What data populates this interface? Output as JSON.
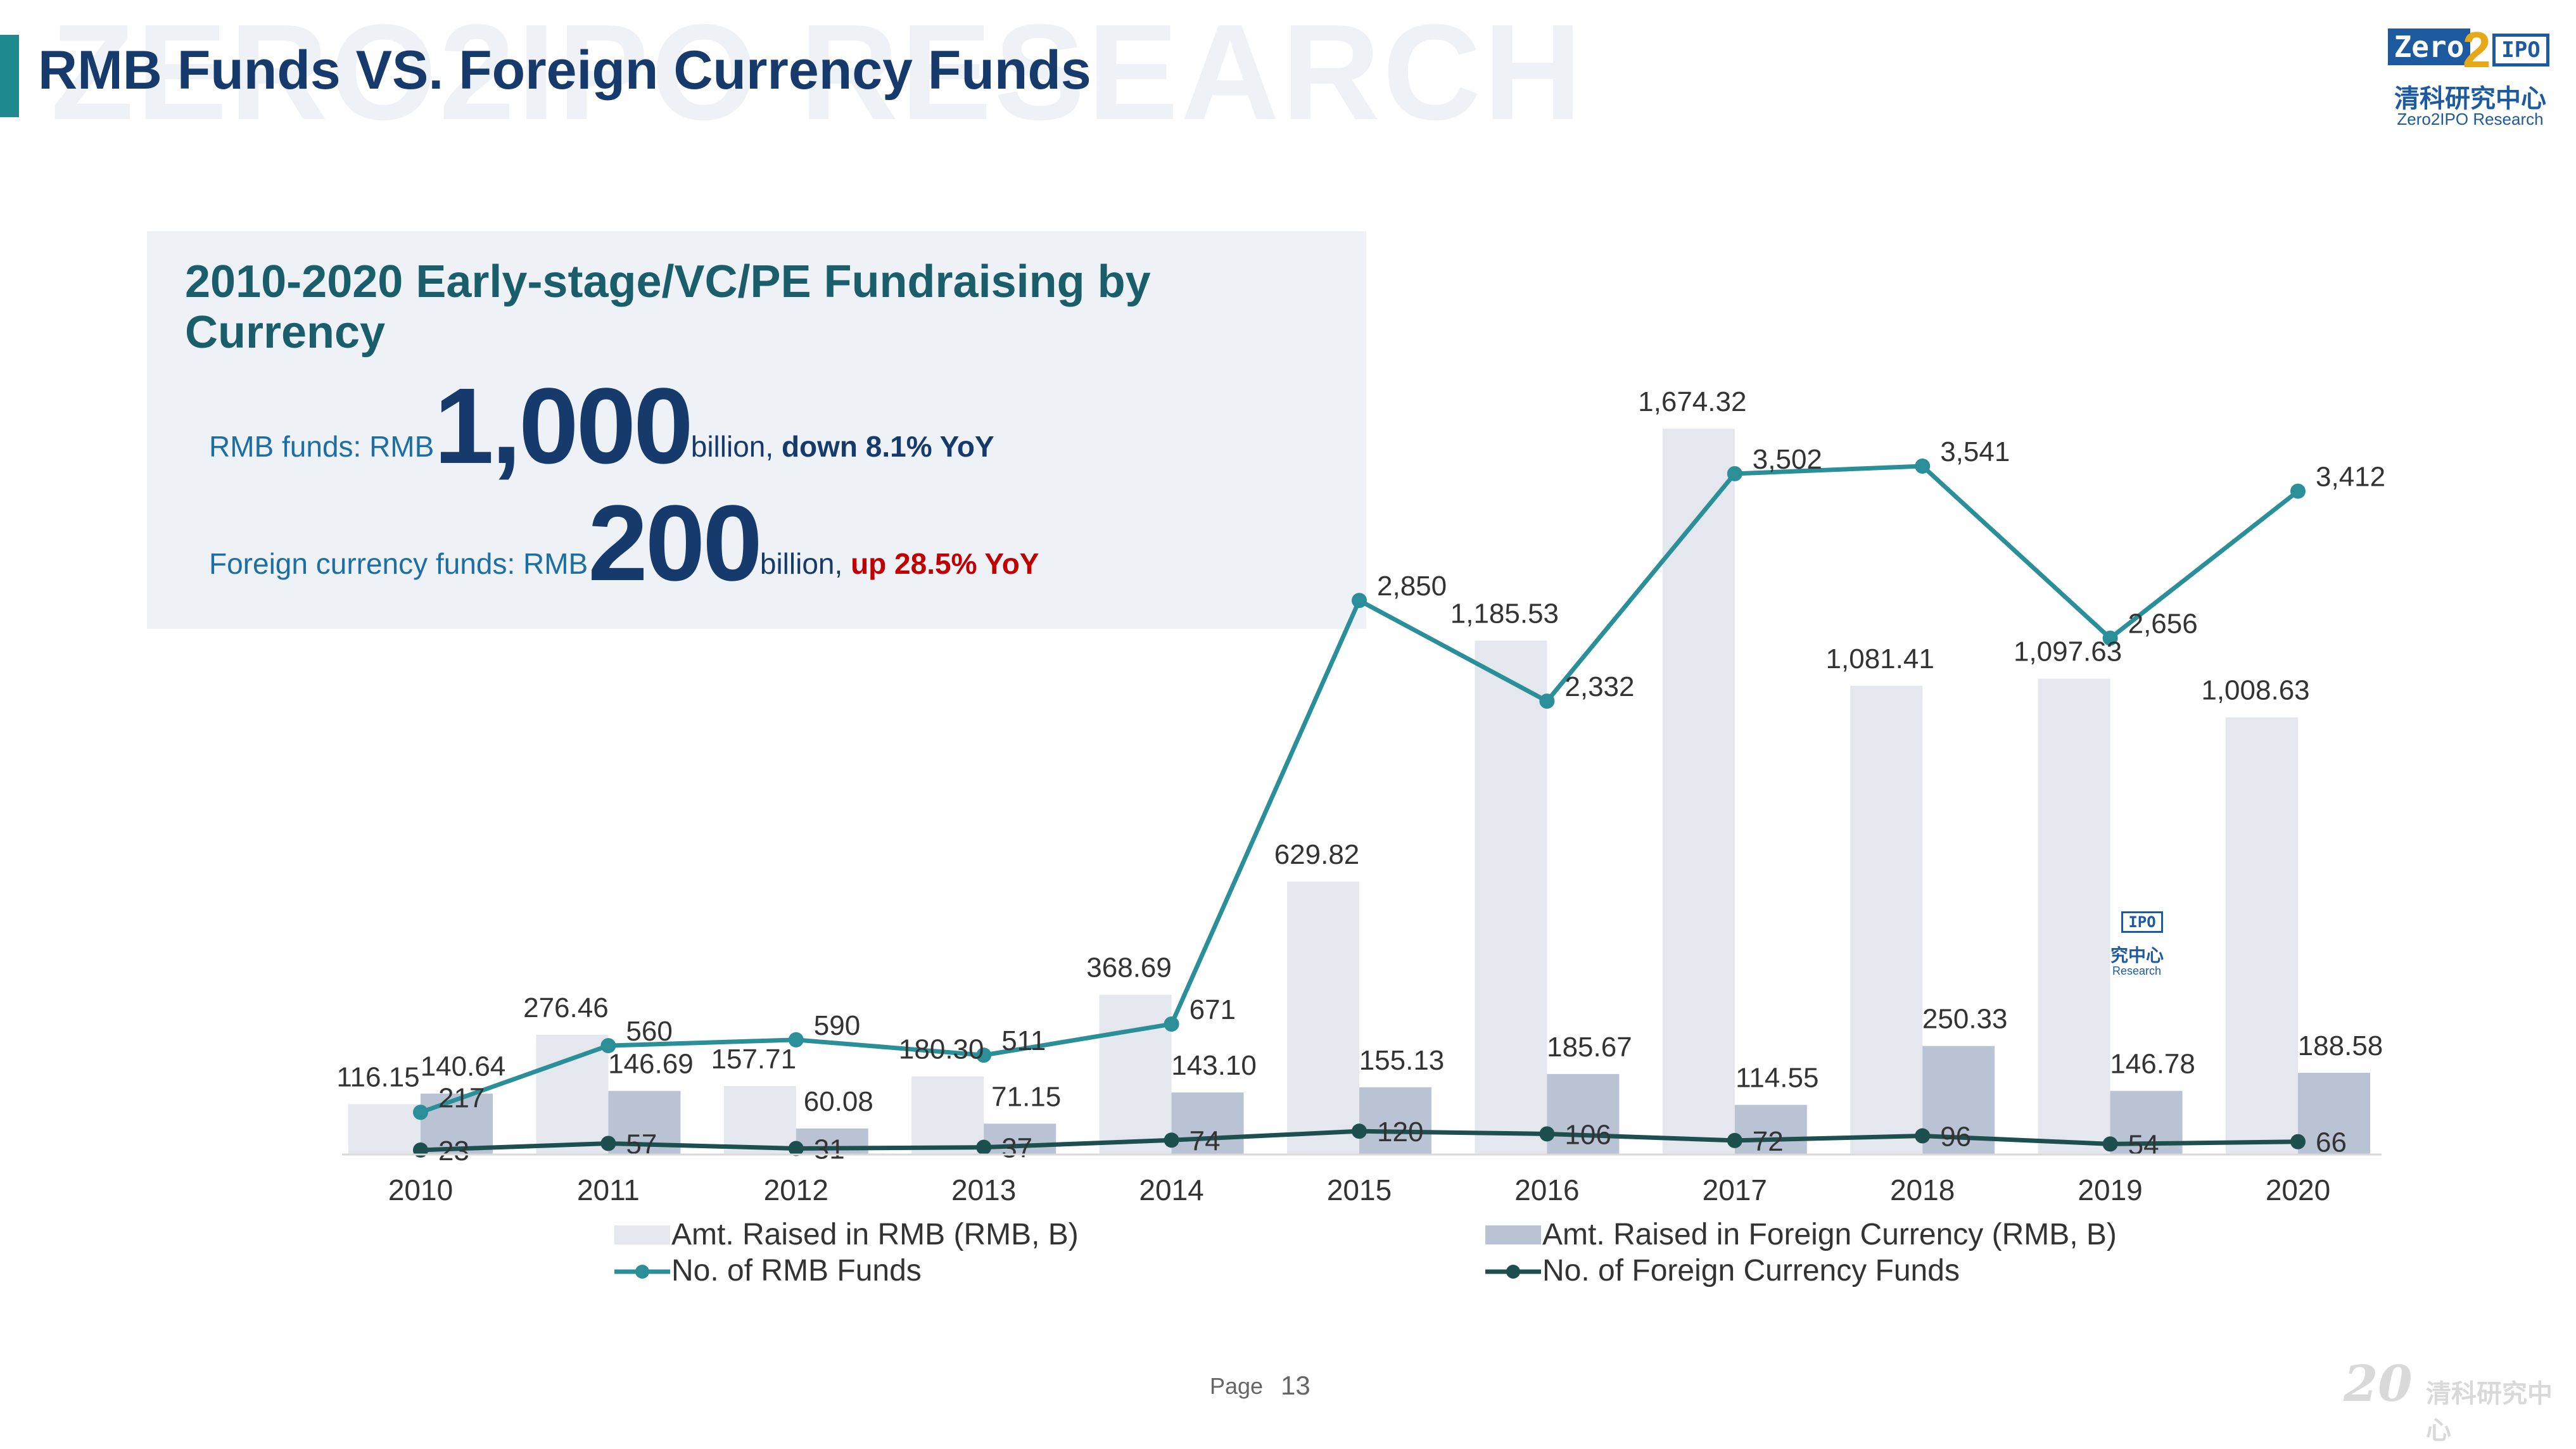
{
  "watermark": "ZERO2IPO RESEARCH",
  "page_title": "RMB Funds VS. Foreign Currency Funds",
  "logo": {
    "zero": "Zero",
    "two": "2",
    "ipo": "IPO",
    "cn": "清科研究中心",
    "en": "Zero2IPO Research"
  },
  "summary": {
    "title": "2010-2020 Early-stage/VC/PE Fundraising by Currency",
    "rmb_prefix": "RMB funds: RMB",
    "rmb_big": "1,000",
    "rmb_unit": "billion, ",
    "rmb_change": "down 8.1% YoY",
    "fx_prefix": "Foreign currency funds: RMB",
    "fx_big": "200",
    "fx_unit": "billion, ",
    "fx_change": "up 28.5% YoY"
  },
  "chart_data": {
    "type": "bar",
    "categories": [
      "2010",
      "2011",
      "2012",
      "2013",
      "2014",
      "2015",
      "2016",
      "2017",
      "2018",
      "2019",
      "2020"
    ],
    "series": [
      {
        "name": "Amt. Raised in RMB (RMB, B)",
        "kind": "bar",
        "color": "#e4e8ee",
        "values": [
          116.15,
          276.46,
          157.71,
          180.3,
          368.69,
          629.82,
          1185.53,
          1674.32,
          1081.41,
          1097.63,
          1008.63
        ],
        "labels": [
          "116.15",
          "276.46",
          "157.71",
          "180.30",
          "368.69",
          "629.82",
          "1,185.53",
          "1,674.32",
          "1,081.41",
          "1,097.63",
          "1,008.63"
        ]
      },
      {
        "name": "Amt. Raised in Foreign Currency (RMB, B)",
        "kind": "bar",
        "color": "#b9c3d3",
        "values": [
          140.64,
          146.69,
          60.08,
          71.15,
          143.1,
          155.13,
          185.67,
          114.55,
          250.33,
          146.78,
          188.58
        ],
        "labels": [
          "140.64",
          "146.69",
          "60.08",
          "71.15",
          "143.10",
          "155.13",
          "185.67",
          "114.55",
          "250.33",
          "146.78",
          "188.58"
        ]
      },
      {
        "name": "No. of RMB Funds",
        "kind": "line",
        "color": "#2a8f98",
        "values": [
          217,
          560,
          590,
          511,
          671,
          2850,
          2332,
          3502,
          3541,
          2656,
          3412
        ],
        "labels": [
          "217",
          "560",
          "590",
          "511",
          "671",
          "2,850",
          "2,332",
          "3,502",
          "3,541",
          "2,656",
          "3,412"
        ]
      },
      {
        "name": "No. of Foreign Currency Funds",
        "kind": "line",
        "color": "#1d4f4f",
        "values": [
          23,
          57,
          31,
          37,
          74,
          120,
          106,
          72,
          96,
          54,
          66
        ],
        "labels": [
          "23",
          "57",
          "31",
          "37",
          "74",
          "120",
          "106",
          "72",
          "96",
          "54",
          "66"
        ]
      }
    ],
    "legend_position": "bottom",
    "grid": false,
    "ylim_amount": [
      0,
      1800
    ],
    "ylim_count": [
      0,
      4000
    ]
  },
  "footer": {
    "page_label": "Page",
    "page_number": "13",
    "anniv": "20",
    "cn": "清科研究中心"
  }
}
